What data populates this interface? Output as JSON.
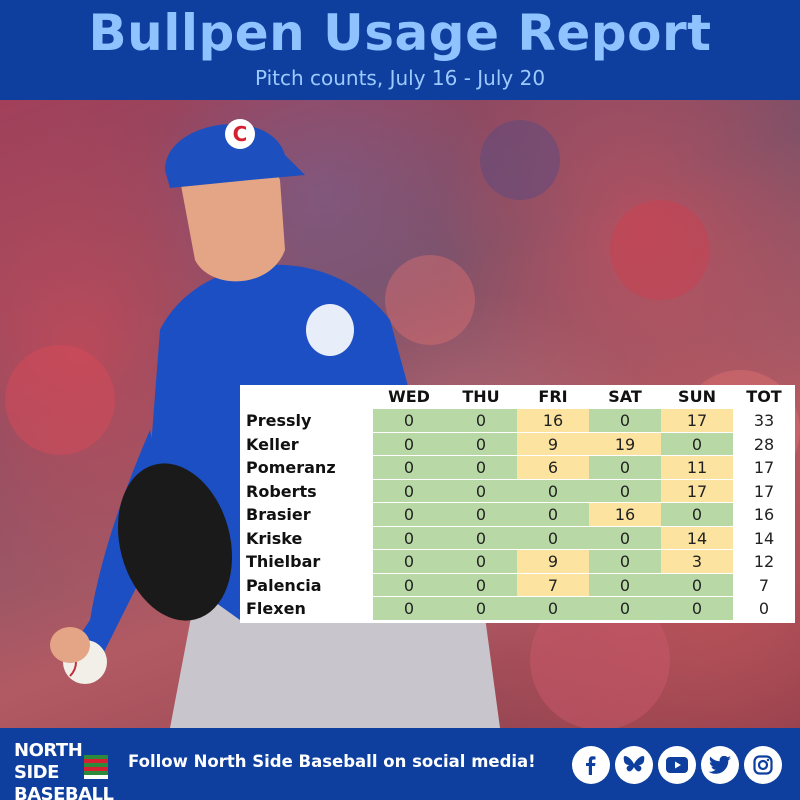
{
  "header": {
    "title": "Bullpen Usage Report",
    "subtitle": "Pitch counts, July 16 - July 20"
  },
  "table": {
    "columns": [
      "WED",
      "THU",
      "FRI",
      "SAT",
      "SUN",
      "TOT"
    ],
    "rows": [
      {
        "name": "Pressly",
        "values": [
          "0",
          "0",
          "16",
          "0",
          "17"
        ],
        "total": "33"
      },
      {
        "name": "Keller",
        "values": [
          "0",
          "0",
          "9",
          "19",
          "0"
        ],
        "total": "28"
      },
      {
        "name": "Pomeranz",
        "values": [
          "0",
          "0",
          "6",
          "0",
          "11"
        ],
        "total": "17"
      },
      {
        "name": "Roberts",
        "values": [
          "0",
          "0",
          "0",
          "0",
          "17"
        ],
        "total": "17"
      },
      {
        "name": "Brasier",
        "values": [
          "0",
          "0",
          "0",
          "16",
          "0"
        ],
        "total": "16"
      },
      {
        "name": "Kriske",
        "values": [
          "0",
          "0",
          "0",
          "0",
          "14"
        ],
        "total": "14"
      },
      {
        "name": "Thielbar",
        "values": [
          "0",
          "0",
          "9",
          "0",
          "3"
        ],
        "total": "12"
      },
      {
        "name": "Palencia",
        "values": [
          "0",
          "0",
          "7",
          "0",
          "0"
        ],
        "total": "7"
      },
      {
        "name": "Flexen",
        "values": [
          "0",
          "0",
          "0",
          "0",
          "0"
        ],
        "total": "0"
      }
    ],
    "colors": {
      "zero": "#b8d9a5",
      "pitched": "#fce3a0"
    }
  },
  "footer": {
    "logo_line1": "NORTH SIDE",
    "logo_line2": "BASEBALL",
    "follow_text": "Follow North Side Baseball on social media!",
    "social_icons": [
      "facebook-icon",
      "bluesky-icon",
      "youtube-icon",
      "twitter-icon",
      "instagram-icon"
    ]
  }
}
